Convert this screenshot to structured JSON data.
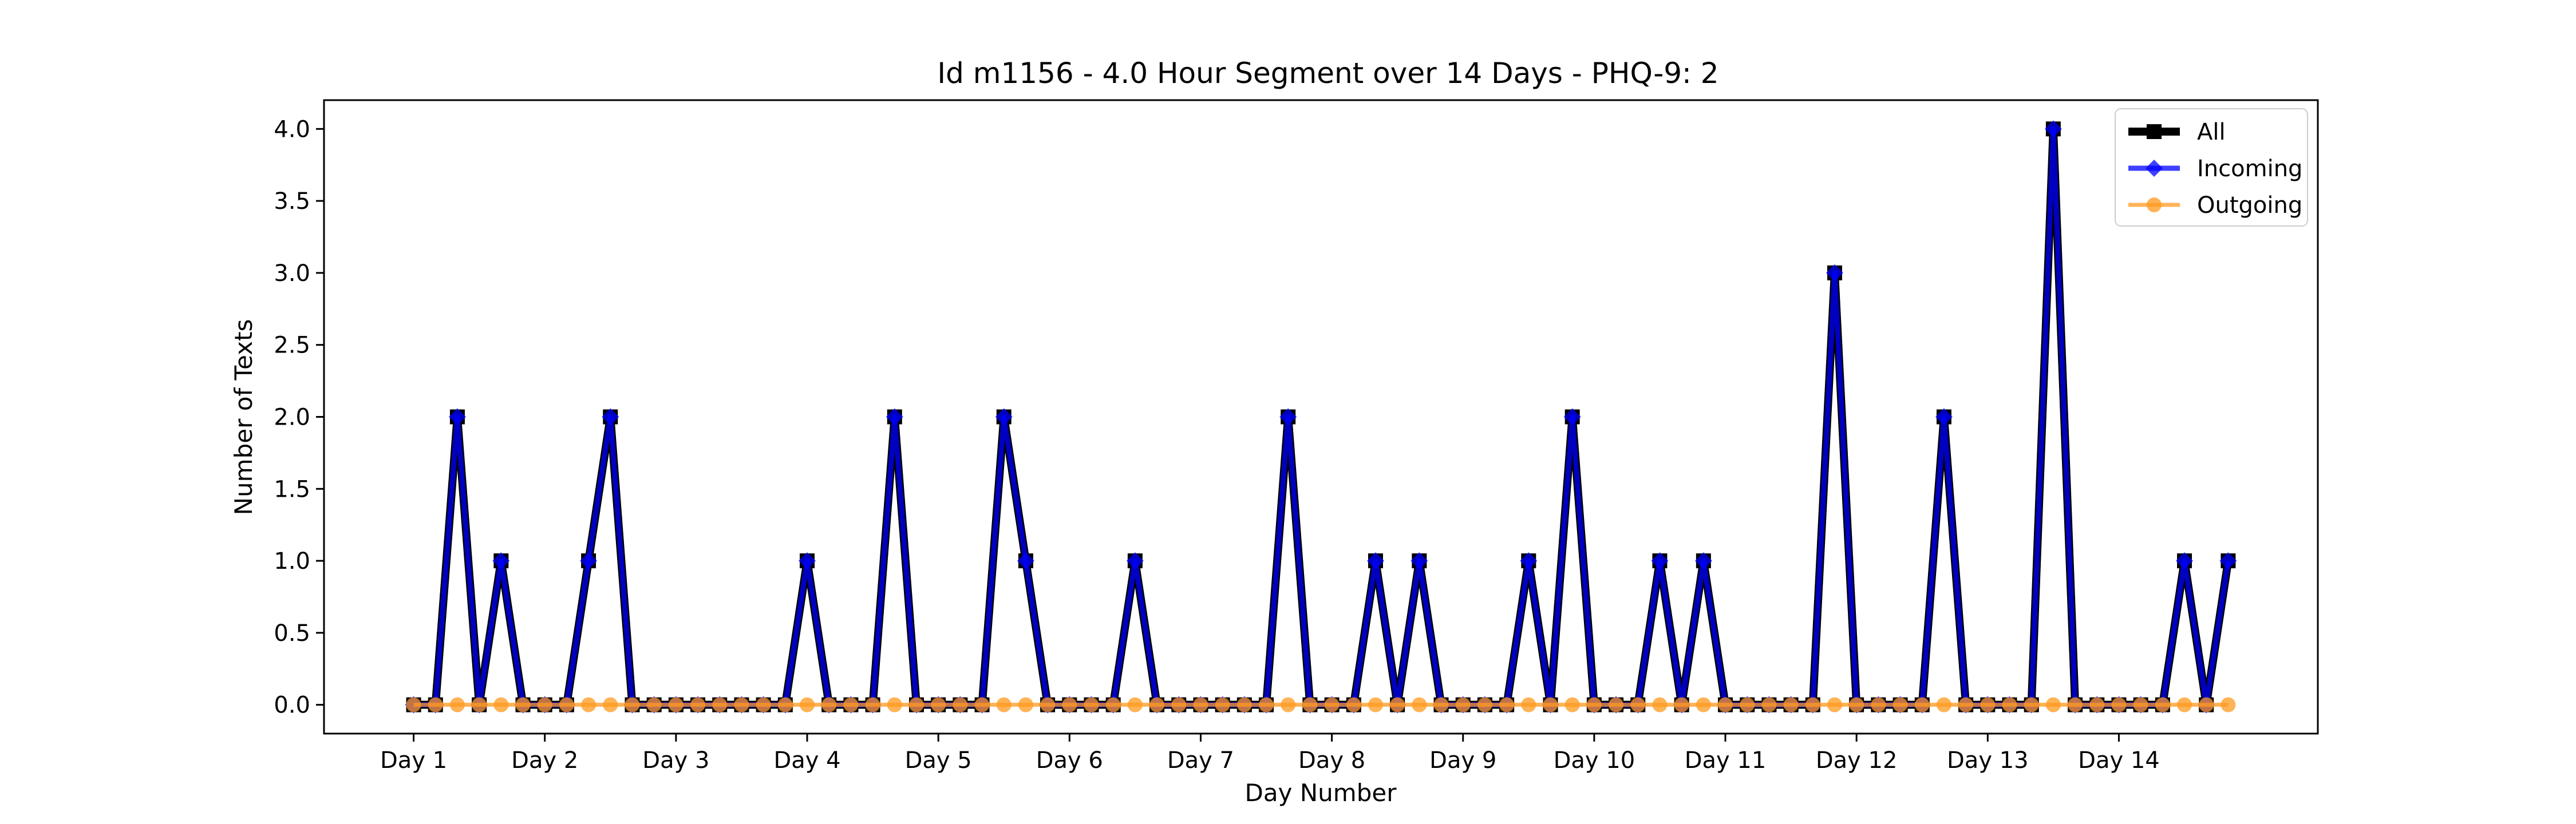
{
  "chart_data": {
    "type": "line",
    "title": "Id m1156 - 4.0 Hour Segment over 14 Days - PHQ-9: 2",
    "xlabel": "Day Number",
    "ylabel": "Number of Texts",
    "x_tick_labels": [
      "Day 1",
      "Day 2",
      "Day 3",
      "Day 4",
      "Day 5",
      "Day 6",
      "Day 7",
      "Day 8",
      "Day 9",
      "Day 10",
      "Day 11",
      "Day 12",
      "Day 13",
      "Day 14"
    ],
    "x_tick_positions": [
      0,
      6,
      12,
      18,
      24,
      30,
      36,
      42,
      48,
      54,
      60,
      66,
      72,
      78
    ],
    "y_ticks": [
      "0.0",
      "0.5",
      "1.0",
      "1.5",
      "2.0",
      "2.5",
      "3.0",
      "3.5",
      "4.0"
    ],
    "ylim": [
      -0.2,
      4.2
    ],
    "xlim": [
      -4.1,
      87.1
    ],
    "legend_position": "top-right",
    "x": [
      0,
      1,
      2,
      3,
      4,
      5,
      6,
      7,
      8,
      9,
      10,
      11,
      12,
      13,
      14,
      15,
      16,
      17,
      18,
      19,
      20,
      21,
      22,
      23,
      24,
      25,
      26,
      27,
      28,
      29,
      30,
      31,
      32,
      33,
      34,
      35,
      36,
      37,
      38,
      39,
      40,
      41,
      42,
      43,
      44,
      45,
      46,
      47,
      48,
      49,
      50,
      51,
      52,
      53,
      54,
      55,
      56,
      57,
      58,
      59,
      60,
      61,
      62,
      63,
      64,
      65,
      66,
      67,
      68,
      69,
      70,
      71,
      72,
      73,
      74,
      75,
      76,
      77,
      78,
      79,
      80,
      81,
      82,
      83
    ],
    "series": [
      {
        "name": "All",
        "color": "#000000",
        "marker": "square",
        "values": [
          0,
          0,
          2,
          0,
          1,
          0,
          0,
          0,
          1,
          2,
          0,
          0,
          0,
          0,
          0,
          0,
          0,
          0,
          1,
          0,
          0,
          0,
          2,
          0,
          0,
          0,
          0,
          2,
          1,
          0,
          0,
          0,
          0,
          1,
          0,
          0,
          0,
          0,
          0,
          0,
          2,
          0,
          0,
          0,
          1,
          0,
          1,
          0,
          0,
          0,
          0,
          1,
          0,
          2,
          0,
          0,
          0,
          1,
          0,
          1,
          0,
          0,
          0,
          0,
          0,
          3,
          0,
          0,
          0,
          0,
          2,
          0,
          0,
          0,
          0,
          4,
          0,
          0,
          0,
          0,
          0,
          1,
          0,
          1
        ]
      },
      {
        "name": "Incoming",
        "color": "#0000ff",
        "marker": "diamond",
        "values": [
          0,
          0,
          2,
          0,
          1,
          0,
          0,
          0,
          1,
          2,
          0,
          0,
          0,
          0,
          0,
          0,
          0,
          0,
          1,
          0,
          0,
          0,
          2,
          0,
          0,
          0,
          0,
          2,
          1,
          0,
          0,
          0,
          0,
          1,
          0,
          0,
          0,
          0,
          0,
          0,
          2,
          0,
          0,
          0,
          1,
          0,
          1,
          0,
          0,
          0,
          0,
          1,
          0,
          2,
          0,
          0,
          0,
          1,
          0,
          1,
          0,
          0,
          0,
          0,
          0,
          3,
          0,
          0,
          0,
          0,
          2,
          0,
          0,
          0,
          0,
          4,
          0,
          0,
          0,
          0,
          0,
          1,
          0,
          1
        ]
      },
      {
        "name": "Outgoing",
        "color": "#ff9a1f",
        "marker": "circle",
        "values": [
          0,
          0,
          0,
          0,
          0,
          0,
          0,
          0,
          0,
          0,
          0,
          0,
          0,
          0,
          0,
          0,
          0,
          0,
          0,
          0,
          0,
          0,
          0,
          0,
          0,
          0,
          0,
          0,
          0,
          0,
          0,
          0,
          0,
          0,
          0,
          0,
          0,
          0,
          0,
          0,
          0,
          0,
          0,
          0,
          0,
          0,
          0,
          0,
          0,
          0,
          0,
          0,
          0,
          0,
          0,
          0,
          0,
          0,
          0,
          0,
          0,
          0,
          0,
          0,
          0,
          0,
          0,
          0,
          0,
          0,
          0,
          0,
          0,
          0,
          0,
          0,
          0,
          0,
          0,
          0,
          0,
          0,
          0,
          0
        ]
      }
    ]
  }
}
